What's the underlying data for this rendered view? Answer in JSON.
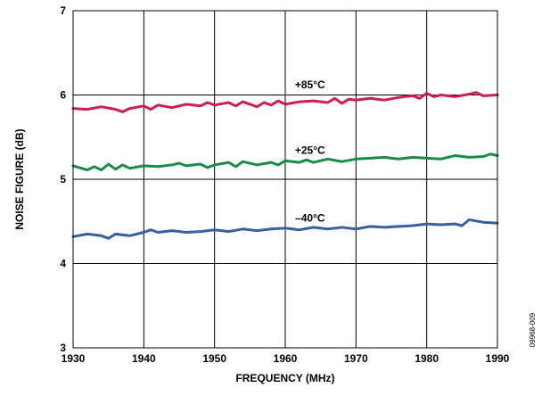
{
  "chart_data": {
    "type": "line",
    "xlabel": "FREQUENCY (MHz)",
    "ylabel": "NOISE FIGURE (dB)",
    "xlim": [
      1930,
      1990
    ],
    "ylim": [
      3,
      7
    ],
    "x_ticks": [
      1930,
      1940,
      1950,
      1960,
      1970,
      1980,
      1990
    ],
    "y_ticks": [
      3,
      4,
      5,
      6,
      7
    ],
    "grid": true,
    "figure_id": "09968-009",
    "series": [
      {
        "name": "+85°C",
        "color": "#cc1f4d",
        "x": [
          1930,
          1932,
          1934,
          1936,
          1937,
          1938,
          1940,
          1941,
          1942,
          1944,
          1946,
          1948,
          1949,
          1950,
          1952,
          1953,
          1954,
          1956,
          1957,
          1958,
          1959,
          1960,
          1962,
          1964,
          1966,
          1967,
          1968,
          1969,
          1970,
          1972,
          1974,
          1976,
          1978,
          1979,
          1980,
          1981,
          1982,
          1984,
          1986,
          1987,
          1988,
          1990
        ],
        "values": [
          5.84,
          5.83,
          5.86,
          5.83,
          5.8,
          5.84,
          5.87,
          5.83,
          5.88,
          5.85,
          5.89,
          5.87,
          5.91,
          5.88,
          5.91,
          5.87,
          5.92,
          5.86,
          5.91,
          5.88,
          5.93,
          5.89,
          5.92,
          5.93,
          5.91,
          5.96,
          5.9,
          5.95,
          5.94,
          5.96,
          5.94,
          5.97,
          5.99,
          5.96,
          6.02,
          5.98,
          6.0,
          5.98,
          6.01,
          6.03,
          5.99,
          6.0
        ]
      },
      {
        "name": "+25°C",
        "color": "#1a8c4a",
        "x": [
          1930,
          1932,
          1933,
          1934,
          1935,
          1936,
          1937,
          1938,
          1940,
          1942,
          1944,
          1945,
          1946,
          1948,
          1949,
          1950,
          1952,
          1953,
          1954,
          1956,
          1958,
          1959,
          1960,
          1962,
          1963,
          1964,
          1966,
          1968,
          1970,
          1972,
          1974,
          1976,
          1978,
          1980,
          1982,
          1984,
          1986,
          1988,
          1989,
          1990
        ],
        "values": [
          5.16,
          5.11,
          5.15,
          5.11,
          5.18,
          5.12,
          5.17,
          5.13,
          5.16,
          5.15,
          5.17,
          5.19,
          5.16,
          5.18,
          5.14,
          5.17,
          5.2,
          5.15,
          5.21,
          5.17,
          5.2,
          5.17,
          5.22,
          5.2,
          5.23,
          5.2,
          5.24,
          5.21,
          5.24,
          5.25,
          5.26,
          5.24,
          5.26,
          5.25,
          5.24,
          5.28,
          5.26,
          5.27,
          5.3,
          5.28
        ]
      },
      {
        "name": "–40°C",
        "color": "#3a5fa0",
        "x": [
          1930,
          1932,
          1934,
          1935,
          1936,
          1938,
          1940,
          1941,
          1942,
          1944,
          1946,
          1948,
          1950,
          1952,
          1954,
          1956,
          1958,
          1960,
          1962,
          1964,
          1966,
          1968,
          1970,
          1972,
          1974,
          1976,
          1978,
          1980,
          1982,
          1984,
          1985,
          1986,
          1988,
          1990
        ],
        "values": [
          4.32,
          4.35,
          4.33,
          4.3,
          4.35,
          4.33,
          4.37,
          4.4,
          4.37,
          4.39,
          4.37,
          4.38,
          4.4,
          4.38,
          4.41,
          4.39,
          4.41,
          4.42,
          4.4,
          4.43,
          4.41,
          4.43,
          4.41,
          4.44,
          4.43,
          4.44,
          4.45,
          4.47,
          4.46,
          4.47,
          4.45,
          4.52,
          4.49,
          4.48
        ]
      }
    ],
    "series_labels": [
      {
        "text": "+85°C",
        "x": 1963.5,
        "y": 6.08
      },
      {
        "text": "+25°C",
        "x": 1963.5,
        "y": 5.3
      },
      {
        "text": "–40°C",
        "x": 1963.5,
        "y": 4.5
      }
    ]
  }
}
